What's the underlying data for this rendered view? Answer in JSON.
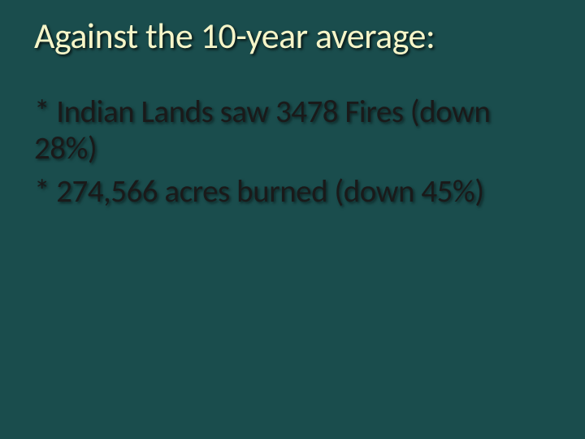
{
  "slide": {
    "background_color": "#1a4d4d",
    "title": {
      "text": "Against the 10-year average:",
      "color": "#f5f5c8",
      "fontsize": 44,
      "shadow_color": "#000000"
    },
    "bullets": [
      {
        "text": "*  Indian Lands saw 3478 Fires (down 28%)",
        "color": "#1a1a1a",
        "fontsize": 39
      },
      {
        "text": "*  274,566 acres burned (down 45%)",
        "color": "#1a1a1a",
        "fontsize": 39
      }
    ]
  }
}
